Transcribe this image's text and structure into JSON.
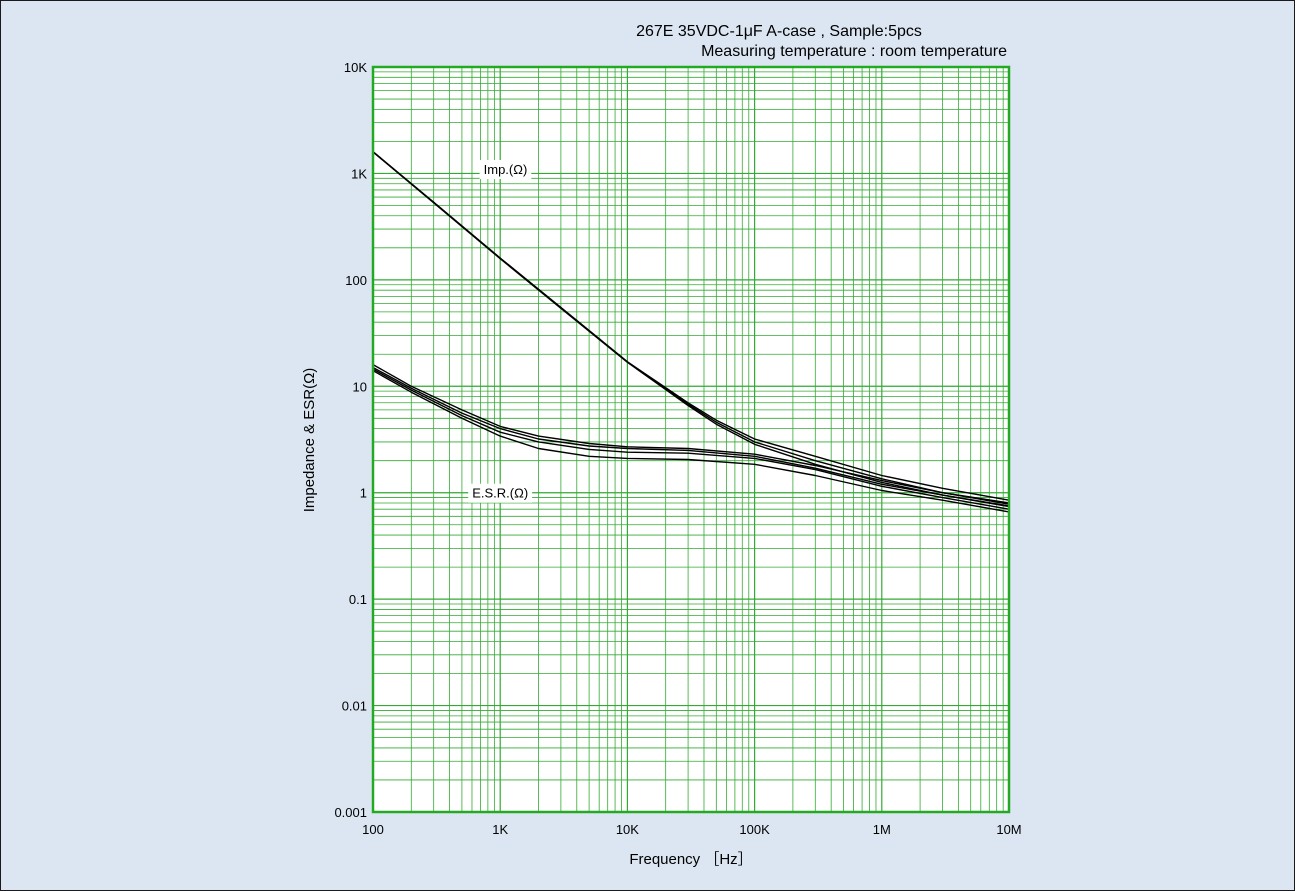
{
  "chart_data": {
    "type": "line",
    "title_lines": [
      "267E 35VDC-1μF A-case , Sample:5pcs",
      "Measuring temperature : room temperature"
    ],
    "xlabel": "Frequency ［Hz］",
    "ylabel": "Impedance  &  ESR(Ω)",
    "x_scale": "log",
    "y_scale": "log",
    "xlim": [
      100,
      10000000
    ],
    "ylim": [
      0.001,
      10000
    ],
    "grid": true,
    "x_ticks": [
      {
        "value": 100,
        "label": "100"
      },
      {
        "value": 1000,
        "label": "1K"
      },
      {
        "value": 10000,
        "label": "10K"
      },
      {
        "value": 100000,
        "label": "100K"
      },
      {
        "value": 1000000,
        "label": "1M"
      },
      {
        "value": 10000000,
        "label": "10M"
      }
    ],
    "y_ticks": [
      {
        "value": 10000,
        "label": "10K"
      },
      {
        "value": 1000,
        "label": "1K"
      },
      {
        "value": 100,
        "label": "100"
      },
      {
        "value": 10,
        "label": "10"
      },
      {
        "value": 1,
        "label": "1"
      },
      {
        "value": 0.1,
        "label": "0.1"
      },
      {
        "value": 0.01,
        "label": "0.01"
      },
      {
        "value": 0.001,
        "label": "0.001"
      }
    ],
    "annotations": [
      {
        "text": "Imp.(Ω)",
        "x": 1100,
        "y": 1100
      },
      {
        "text": "E.S.R.(Ω)",
        "x": 1000,
        "y": 1.0
      }
    ],
    "series": [
      {
        "group": "impedance",
        "x": [
          100,
          300,
          1000,
          3000,
          10000,
          30000,
          50000,
          100000,
          300000,
          1000000,
          3000000,
          10000000
        ],
        "y": [
          1600,
          535,
          160,
          55,
          17,
          7.0,
          4.8,
          3.2,
          2.2,
          1.45,
          1.1,
          0.85
        ]
      },
      {
        "group": "impedance",
        "x": [
          100,
          300,
          1000,
          3000,
          10000,
          30000,
          50000,
          100000,
          300000,
          1000000,
          3000000,
          10000000
        ],
        "y": [
          1600,
          535,
          160,
          55,
          17,
          6.8,
          4.6,
          3.0,
          2.0,
          1.35,
          1.0,
          0.8
        ]
      },
      {
        "group": "impedance",
        "x": [
          100,
          300,
          1000,
          3000,
          10000,
          30000,
          50000,
          100000,
          300000,
          1000000,
          3000000,
          10000000
        ],
        "y": [
          1590,
          530,
          158,
          54,
          16.8,
          6.6,
          4.4,
          2.85,
          1.85,
          1.25,
          0.95,
          0.75
        ]
      },
      {
        "group": "esr",
        "x": [
          100,
          200,
          500,
          1000,
          2000,
          5000,
          10000,
          30000,
          100000,
          300000,
          1000000,
          3000000,
          10000000
        ],
        "y": [
          16,
          10,
          6.0,
          4.2,
          3.4,
          2.9,
          2.7,
          2.6,
          2.3,
          1.8,
          1.3,
          1.0,
          0.78
        ]
      },
      {
        "group": "esr",
        "x": [
          100,
          200,
          500,
          1000,
          2000,
          5000,
          10000,
          30000,
          100000,
          300000,
          1000000,
          3000000,
          10000000
        ],
        "y": [
          15,
          9.6,
          5.6,
          4.0,
          3.2,
          2.75,
          2.6,
          2.5,
          2.2,
          1.7,
          1.2,
          0.95,
          0.74
        ]
      },
      {
        "group": "esr",
        "x": [
          100,
          200,
          500,
          1000,
          2000,
          5000,
          10000,
          30000,
          100000,
          300000,
          1000000,
          3000000,
          10000000
        ],
        "y": [
          14.5,
          9.2,
          5.3,
          3.7,
          3.0,
          2.55,
          2.4,
          2.35,
          2.1,
          1.65,
          1.15,
          0.9,
          0.7
        ]
      },
      {
        "group": "esr",
        "x": [
          100,
          200,
          500,
          1000,
          2000,
          5000,
          10000,
          30000,
          100000,
          300000,
          1000000,
          3000000,
          10000000
        ],
        "y": [
          14,
          8.8,
          5.0,
          3.4,
          2.6,
          2.2,
          2.1,
          2.05,
          1.85,
          1.45,
          1.05,
          0.85,
          0.66
        ]
      }
    ]
  },
  "colors": {
    "background": "#dce6f2",
    "plot_background": "#ffffff",
    "grid": "#33aa33",
    "frame": "#22aa22",
    "series": "#000000"
  }
}
